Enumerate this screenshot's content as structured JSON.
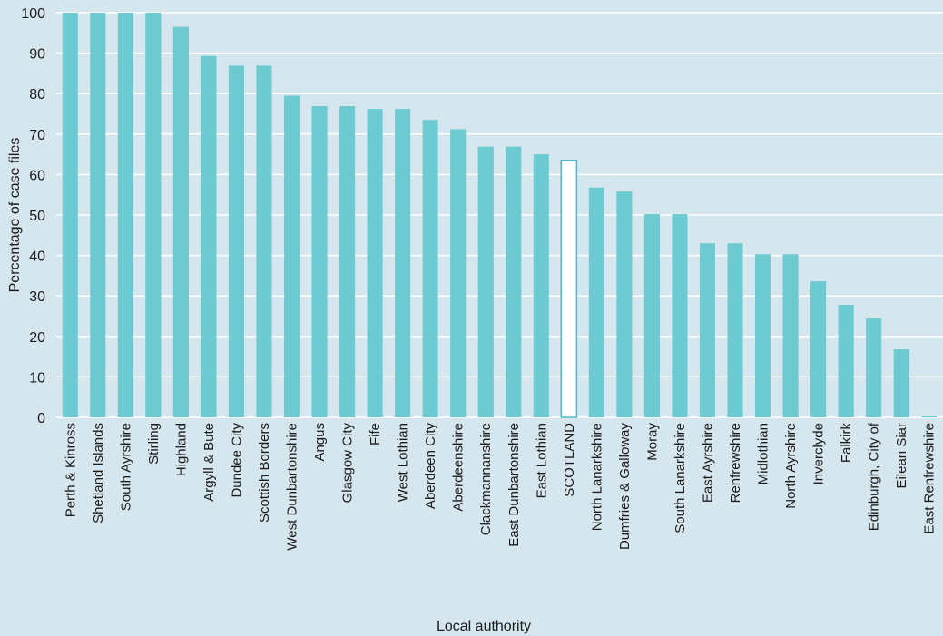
{
  "chart_data": {
    "type": "bar",
    "title": "",
    "xlabel": "Local authority",
    "ylabel": "Percentage of case files",
    "ylim": [
      0,
      100
    ],
    "yticks": [
      0,
      10,
      20,
      30,
      40,
      50,
      60,
      70,
      80,
      90,
      100
    ],
    "grid": true,
    "categories": [
      "Perth & Kinross",
      "Shetland Islands",
      "South Ayrshire",
      "Stirling",
      "Highland",
      "Argyll & Bute",
      "Dundee City",
      "Scottish Borders",
      "West Dunbartonshire",
      "Angus",
      "Glasgow City",
      "Fife",
      "West Lothian",
      "Aberdeen City",
      "Aberdeenshire",
      "Clackmannanshire",
      "East Dunbartonshire",
      "East Lothian",
      "SCOTLAND",
      "North Lanarkshire",
      "Dumfries & Galloway",
      "Moray",
      "South Lanarkshire",
      "East Ayrshire",
      "Renfrewshire",
      "Midlothian",
      "North Ayrshire",
      "Inverclyde",
      "Falkirk",
      "Edinburgh, City of",
      "Eilean Siar",
      "East Renfrewshire"
    ],
    "values": [
      100,
      100,
      100,
      100,
      96.5,
      89.3,
      86.9,
      86.9,
      79.5,
      76.9,
      76.9,
      76.2,
      76.2,
      73.5,
      71.2,
      66.9,
      66.9,
      65,
      63.5,
      56.8,
      55.8,
      50.2,
      50.2,
      43,
      43,
      40.3,
      40.3,
      33.6,
      27.8,
      24.5,
      16.8,
      0.3
    ],
    "highlight": "SCOTLAND",
    "colors": {
      "background": "#d6e6ee",
      "bar": "#6ccad0",
      "highlight_fill": "#ffffff",
      "highlight_stroke": "#4fb8c2",
      "grid": "#ffffff"
    }
  }
}
